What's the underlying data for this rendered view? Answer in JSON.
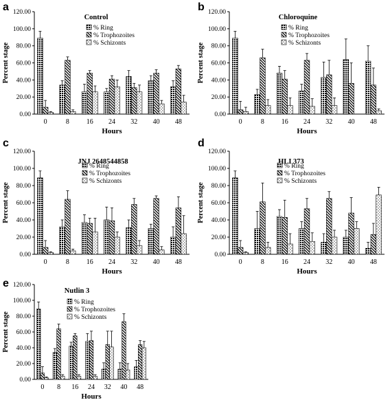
{
  "chart_data": [
    {
      "type": "bar",
      "panel_letter": "a",
      "title": "Control",
      "xlabel": "Hours",
      "ylabel": "Percent stage",
      "ylim": [
        0,
        120
      ],
      "yticks": [
        "0.00",
        "20.00",
        "40.00",
        "60.00",
        "80.00",
        "100.00",
        "120.00"
      ],
      "categories": [
        "0",
        "8",
        "16",
        "24",
        "32",
        "40",
        "48"
      ],
      "legend_position": "top-right",
      "grid": false,
      "series": [
        {
          "name": "% Ring",
          "values": [
            89,
            34,
            26,
            26,
            44,
            39,
            32
          ],
          "errors": [
            8,
            5,
            9,
            4,
            7,
            6,
            7
          ]
        },
        {
          "name": "% Trophozoites",
          "values": [
            8,
            63,
            48,
            41,
            31,
            48,
            53
          ],
          "errors": [
            8,
            4,
            3,
            4,
            5,
            4,
            4
          ]
        },
        {
          "name": "% Schizonts",
          "values": [
            2,
            3,
            26,
            32,
            26,
            12,
            14
          ],
          "errors": [
            1,
            2,
            7,
            8,
            8,
            4,
            8
          ]
        }
      ]
    },
    {
      "type": "bar",
      "panel_letter": "b",
      "title": "Chloroquine",
      "xlabel": "Hours",
      "ylabel": "Percent stage",
      "ylim": [
        0,
        120
      ],
      "yticks": [
        "0.00",
        "20.00",
        "40.00",
        "60.00",
        "80.00",
        "100.00",
        "120.00"
      ],
      "categories": [
        "0",
        "8",
        "16",
        "24",
        "32",
        "40",
        "48"
      ],
      "legend_position": "top-right",
      "grid": false,
      "series": [
        {
          "name": "% Ring",
          "values": [
            89,
            23,
            48,
            27,
            43,
            64,
            62
          ],
          "errors": [
            8,
            6,
            8,
            8,
            18,
            24,
            18
          ]
        },
        {
          "name": "% Trophozoites",
          "values": [
            5,
            66,
            41,
            63,
            46,
            36,
            34
          ],
          "errors": [
            10,
            10,
            10,
            8,
            17,
            24,
            20
          ]
        },
        {
          "name": "% Schizonts",
          "values": [
            3,
            10,
            10,
            9,
            10,
            0,
            4
          ],
          "errors": [
            5,
            7,
            9,
            9,
            9,
            0,
            2
          ]
        }
      ]
    },
    {
      "type": "bar",
      "panel_letter": "c",
      "title": "JNJ 2648544858",
      "xlabel": "Hours",
      "ylabel": "Percent stage",
      "ylim": [
        0,
        120
      ],
      "yticks": [
        "0.00",
        "20.00",
        "40.00",
        "60.00",
        "80.00",
        "100.00",
        "120.00"
      ],
      "categories": [
        "0",
        "8",
        "16",
        "24",
        "32",
        "40",
        "48"
      ],
      "legend_position": "top-right",
      "grid": false,
      "series": [
        {
          "name": "% Ring",
          "values": [
            89,
            32,
            37,
            40,
            31,
            30,
            20
          ],
          "errors": [
            8,
            8,
            9,
            15,
            9,
            5,
            12
          ]
        },
        {
          "name": "% Trophozoites",
          "values": [
            8,
            64,
            36,
            39,
            58,
            65,
            54
          ],
          "errors": [
            8,
            10,
            6,
            15,
            7,
            3,
            13
          ]
        },
        {
          "name": "% Schizonts",
          "values": [
            2,
            4,
            26,
            20,
            10,
            5,
            24
          ],
          "errors": [
            1,
            2,
            16,
            6,
            6,
            4,
            21
          ]
        }
      ]
    },
    {
      "type": "bar",
      "panel_letter": "d",
      "title": "HLI 373",
      "xlabel": "Hours",
      "ylabel": "Percent stage",
      "ylim": [
        0,
        120
      ],
      "yticks": [
        "0.00",
        "20.00",
        "40.00",
        "60.00",
        "80.00",
        "100.00",
        "120.00"
      ],
      "categories": [
        "0",
        "8",
        "16",
        "24",
        "32",
        "40",
        "48"
      ],
      "legend_position": "top-right",
      "grid": false,
      "series": [
        {
          "name": "% Ring",
          "values": [
            89,
            30,
            44,
            30,
            14,
            20,
            7
          ],
          "errors": [
            8,
            20,
            8,
            8,
            10,
            8,
            7
          ]
        },
        {
          "name": "% Trophozoites",
          "values": [
            8,
            61,
            43,
            53,
            65,
            48,
            23
          ],
          "errors": [
            8,
            22,
            20,
            12,
            8,
            18,
            13
          ]
        },
        {
          "name": "% Schizonts",
          "values": [
            2,
            8,
            12,
            15,
            20,
            30,
            69
          ],
          "errors": [
            1,
            6,
            12,
            10,
            8,
            8,
            9
          ]
        }
      ]
    },
    {
      "type": "bar",
      "panel_letter": "e",
      "title": "Nutlin 3",
      "xlabel": "Hours",
      "ylabel": "Percent stage",
      "ylim": [
        0,
        120
      ],
      "yticks": [
        "0.00",
        "20.00",
        "40.00",
        "60.00",
        "80.00",
        "100.00",
        "120.00"
      ],
      "categories": [
        "0",
        "8",
        "16",
        "24",
        "32",
        "40",
        "48"
      ],
      "legend_position": "top-right",
      "grid": false,
      "series": [
        {
          "name": "% Ring",
          "values": [
            89,
            34,
            42,
            48,
            13,
            13,
            16
          ],
          "errors": [
            9,
            5,
            5,
            10,
            8,
            8,
            8
          ]
        },
        {
          "name": "% Trophozoites",
          "values": [
            8,
            64,
            55,
            49,
            44,
            73,
            44
          ],
          "errors": [
            8,
            6,
            3,
            12,
            17,
            10,
            5
          ]
        },
        {
          "name": "% Schizonts",
          "values": [
            2,
            4,
            4,
            4,
            41,
            12,
            40
          ],
          "errors": [
            1,
            2,
            2,
            2,
            20,
            8,
            8
          ]
        }
      ]
    }
  ]
}
